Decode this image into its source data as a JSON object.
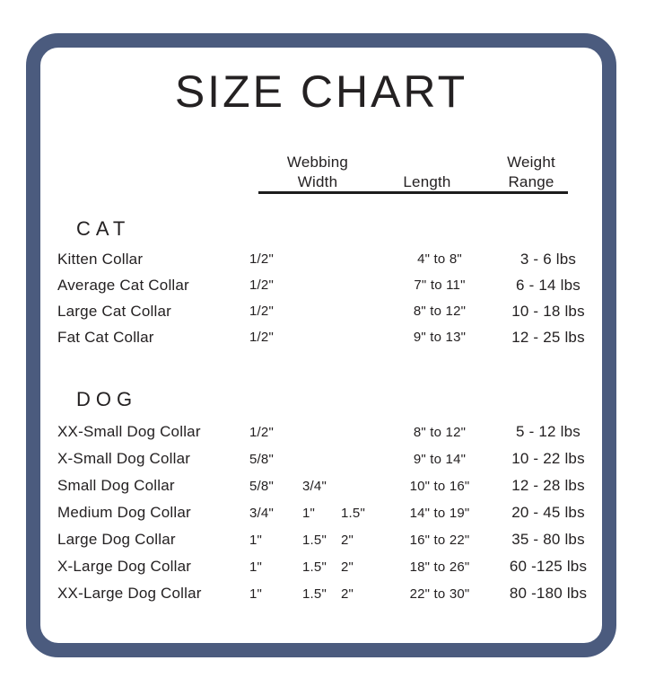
{
  "colors": {
    "accent": "#4b5b7e",
    "text": "#242122",
    "underline": "#1c1c1c",
    "background": "#ffffff"
  },
  "chart_data": {
    "type": "table",
    "title": "SIZE CHART",
    "column_headers": {
      "webbing_line1": "Webbing",
      "webbing_line2": "Width",
      "length": "Length",
      "weight_line1": "Weight",
      "weight_line2": "Range"
    },
    "sections": [
      {
        "name": "CAT",
        "rows": [
          {
            "label": "Kitten Collar",
            "webbing": [
              "1/2\""
            ],
            "length": "4\" to 8\"",
            "weight": "3 - 6 lbs"
          },
          {
            "label": "Average Cat Collar",
            "webbing": [
              "1/2\""
            ],
            "length": "7\" to 11\"",
            "weight": "6 - 14 lbs"
          },
          {
            "label": "Large Cat Collar",
            "webbing": [
              "1/2\""
            ],
            "length": "8\" to 12\"",
            "weight": "10 - 18 lbs"
          },
          {
            "label": "Fat Cat Collar",
            "webbing": [
              "1/2\""
            ],
            "length": "9\" to 13\"",
            "weight": "12 - 25 lbs"
          }
        ]
      },
      {
        "name": "DOG",
        "rows": [
          {
            "label": "XX-Small Dog Collar",
            "webbing": [
              "1/2\""
            ],
            "length": "8\" to 12\"",
            "weight": "5 - 12 lbs"
          },
          {
            "label": "X-Small Dog Collar",
            "webbing": [
              "5/8\""
            ],
            "length": "9\" to 14\"",
            "weight": "10 - 22 lbs"
          },
          {
            "label": "Small Dog Collar",
            "webbing": [
              "5/8\"",
              "3/4\""
            ],
            "length": "10\" to 16\"",
            "weight": "12 - 28 lbs"
          },
          {
            "label": "Medium Dog Collar",
            "webbing": [
              "3/4\"",
              "1\"",
              "1.5\""
            ],
            "length": "14\" to 19\"",
            "weight": "20 - 45 lbs"
          },
          {
            "label": "Large Dog Collar",
            "webbing": [
              "1\"",
              "1.5\"",
              "2\""
            ],
            "length": "16\" to 22\"",
            "weight": "35 - 80 lbs"
          },
          {
            "label": "X-Large Dog Collar",
            "webbing": [
              "1\"",
              "1.5\"",
              "2\""
            ],
            "length": "18\" to 26\"",
            "weight": "60 -125 lbs"
          },
          {
            "label": "XX-Large Dog Collar",
            "webbing": [
              "1\"",
              "1.5\"",
              "2\""
            ],
            "length": "22\" to 30\"",
            "weight": "80 -180 lbs"
          }
        ]
      }
    ]
  }
}
